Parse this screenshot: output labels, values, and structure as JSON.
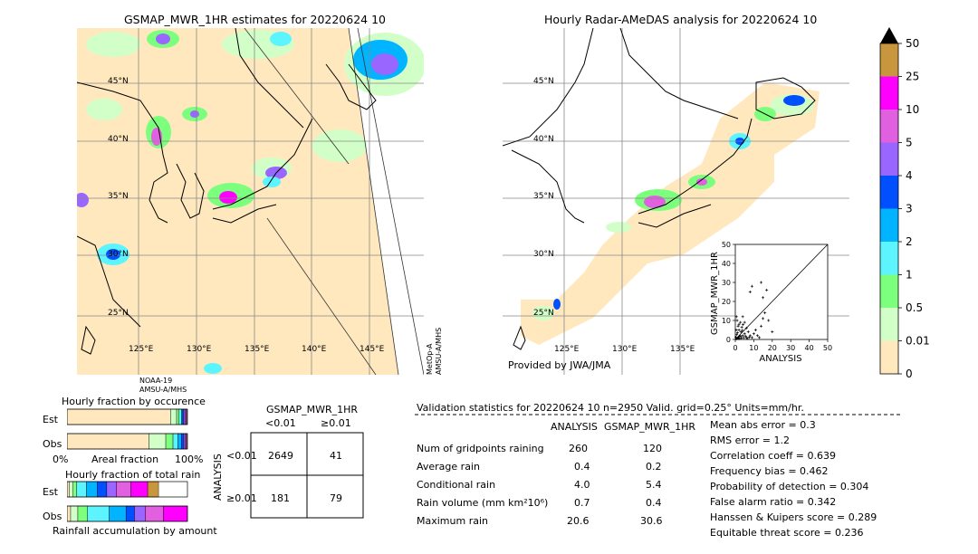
{
  "left_map": {
    "title": "GSMAP_MWR_1HR estimates for 20220624 10",
    "lat_labels": [
      "45°N",
      "40°N",
      "35°N",
      "30°N",
      "25°N"
    ],
    "lon_labels": [
      "125°E",
      "130°E",
      "135°E",
      "140°E",
      "145°E"
    ],
    "satellite_bottom": "NOAA-19\nAMSU-A/MHS",
    "satellite_right": "MetOp-A\nAMSU-A/MHS"
  },
  "right_map": {
    "title": "Hourly Radar-AMeDAS analysis for 20220624 10",
    "lat_labels": [
      "45°N",
      "40°N",
      "35°N",
      "30°N",
      "25°N"
    ],
    "lon_labels": [
      "125°E",
      "130°E",
      "135°E"
    ],
    "credit": "Provided by JWA/JMA"
  },
  "colorbar": {
    "labels": [
      "50",
      "25",
      "10",
      "5",
      "4",
      "3",
      "2",
      "1",
      "0.5",
      "0.01",
      "0"
    ],
    "colors": [
      "#c8963c",
      "#ff00ff",
      "#e060e0",
      "#9966ff",
      "#0050ff",
      "#00b4ff",
      "#5cf5ff",
      "#7cff7c",
      "#d2ffc8",
      "#ffe8be"
    ]
  },
  "chart_data": [
    {
      "type": "scatter",
      "title": "",
      "xlabel": "ANALYSIS",
      "ylabel": "GSMAP_MWR_1HR",
      "xlim": [
        0,
        50
      ],
      "ylim": [
        0,
        50
      ],
      "x_ticks": [
        "0",
        "10",
        "20",
        "30",
        "40",
        "50"
      ],
      "y_ticks": [
        "0",
        "10",
        "20",
        "30",
        "40",
        "50"
      ],
      "points": [
        [
          0.5,
          0.3
        ],
        [
          1,
          0.5
        ],
        [
          1.5,
          1
        ],
        [
          2,
          0.4
        ],
        [
          2.5,
          2
        ],
        [
          3,
          1.5
        ],
        [
          0.8,
          2.5
        ],
        [
          1.2,
          3.5
        ],
        [
          2,
          5
        ],
        [
          3,
          4
        ],
        [
          4,
          2
        ],
        [
          5,
          3
        ],
        [
          6,
          1
        ],
        [
          3.5,
          6.5
        ],
        [
          2,
          8
        ],
        [
          1,
          10
        ],
        [
          4,
          12
        ],
        [
          5,
          9
        ],
        [
          6,
          6
        ],
        [
          7,
          4
        ],
        [
          8,
          2
        ],
        [
          9,
          1
        ],
        [
          10,
          3
        ],
        [
          11,
          5
        ],
        [
          12,
          2
        ],
        [
          13,
          1
        ],
        [
          14,
          7
        ],
        [
          15,
          11
        ],
        [
          16,
          14
        ],
        [
          8,
          25
        ],
        [
          9,
          28
        ],
        [
          14,
          30
        ],
        [
          15,
          22
        ],
        [
          17,
          26
        ],
        [
          18,
          10
        ],
        [
          20,
          4
        ],
        [
          0.5,
          5
        ],
        [
          0.3,
          1.2
        ],
        [
          1.8,
          0.8
        ],
        [
          2.2,
          1.6
        ],
        [
          3.2,
          0.6
        ],
        [
          4.5,
          0.9
        ],
        [
          5.5,
          1.8
        ],
        [
          6.5,
          0.5
        ],
        [
          7.5,
          1.2
        ],
        [
          1.5,
          7
        ],
        [
          2.8,
          9
        ],
        [
          0.6,
          12
        ],
        [
          3.8,
          4.8
        ],
        [
          4.2,
          7.8
        ]
      ],
      "diagonal": true
    },
    {
      "type": "bar",
      "title": "Hourly fraction by occurence",
      "categories": [
        "Est",
        "Obs"
      ],
      "x_tick_labels": [
        "0%",
        "100%"
      ],
      "xlabel": "Areal fraction",
      "series": [
        {
          "color": "#ffe8be",
          "values": [
            0.86,
            0.68
          ]
        },
        {
          "color": "#d2ffc8",
          "values": [
            0.05,
            0.14
          ]
        },
        {
          "color": "#7cff7c",
          "values": [
            0.02,
            0.06
          ]
        },
        {
          "color": "#5cf5ff",
          "values": [
            0.02,
            0.04
          ]
        },
        {
          "color": "#00b4ff",
          "values": [
            0.01,
            0.03
          ]
        },
        {
          "color": "#0050ff",
          "values": [
            0.01,
            0.02
          ]
        },
        {
          "color": "#9966ff",
          "values": [
            0.01,
            0.01
          ]
        },
        {
          "color": "#e060e0",
          "values": [
            0.01,
            0.01
          ]
        },
        {
          "color": "#ff00ff",
          "values": [
            0.005,
            0.005
          ]
        }
      ]
    },
    {
      "type": "bar",
      "title": "Hourly fraction of total rain",
      "categories": [
        "Est",
        "Obs"
      ],
      "xlabel": "Rainfall accumulation by amount",
      "series": [
        {
          "color": "#ffe8be",
          "values": [
            0.02,
            0.03
          ]
        },
        {
          "color": "#d2ffc8",
          "values": [
            0.03,
            0.06
          ]
        },
        {
          "color": "#7cff7c",
          "values": [
            0.03,
            0.08
          ]
        },
        {
          "color": "#5cf5ff",
          "values": [
            0.08,
            0.18
          ]
        },
        {
          "color": "#00b4ff",
          "values": [
            0.09,
            0.14
          ]
        },
        {
          "color": "#0050ff",
          "values": [
            0.08,
            0.07
          ]
        },
        {
          "color": "#9966ff",
          "values": [
            0.08,
            0.09
          ]
        },
        {
          "color": "#e060e0",
          "values": [
            0.12,
            0.15
          ]
        },
        {
          "color": "#ff00ff",
          "values": [
            0.14,
            0.2
          ]
        },
        {
          "color": "#c8963c",
          "values": [
            0.09,
            0.0
          ]
        }
      ]
    }
  ],
  "contingency": {
    "title": "GSMAP_MWR_1HR",
    "col_labels": [
      "<0.01",
      "≥0.01"
    ],
    "row_labels": [
      "<0.01",
      "≥0.01"
    ],
    "row_axis": "ANALYSIS",
    "cells": [
      [
        "2649",
        "41"
      ],
      [
        "181",
        "79"
      ]
    ]
  },
  "validation": {
    "header": "Validation statistics for 20220624 10  n=2950 Valid. grid=0.25° Units=mm/hr.",
    "col_analysis": "ANALYSIS",
    "col_gsmap": "GSMAP_MWR_1HR",
    "rows": [
      {
        "label": "Num of gridpoints raining",
        "analysis": "260",
        "gsmap": "120"
      },
      {
        "label": "Average rain",
        "analysis": "0.4",
        "gsmap": "0.2"
      },
      {
        "label": "Conditional rain",
        "analysis": "4.0",
        "gsmap": "5.4"
      },
      {
        "label": "Rain volume (mm km²10⁶)",
        "analysis": "0.7",
        "gsmap": "0.4"
      },
      {
        "label": "Maximum rain",
        "analysis": "20.6",
        "gsmap": "30.6"
      }
    ],
    "scores": [
      "Mean abs error =    0.3",
      "RMS error =    1.2",
      "Correlation coeff =  0.639",
      "Frequency bias =  0.462",
      "Probability of detection =  0.304",
      "False alarm ratio =  0.342",
      "Hanssen & Kuipers score =  0.289",
      "Equitable threat score =  0.236"
    ]
  }
}
